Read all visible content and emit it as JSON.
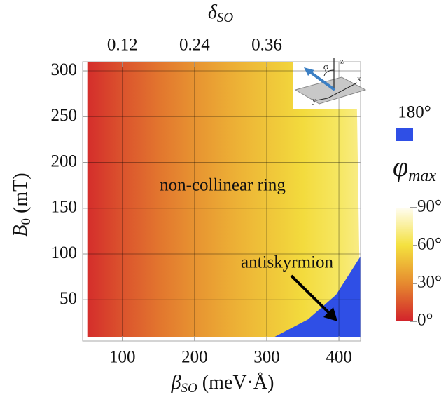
{
  "chart_data": {
    "type": "heatmap",
    "xlabel": {
      "symbol": "β",
      "subscript": "SO",
      "rest": " (meV·Å)"
    },
    "x2label": {
      "symbol": "δ",
      "subscript": "SO"
    },
    "ylabel": {
      "symbol": "B",
      "subscript": "0",
      "rest": " (mT)"
    },
    "xlim": [
      45,
      430
    ],
    "xticks": [
      100,
      200,
      300,
      400
    ],
    "x2lim": [
      0.054,
      0.516
    ],
    "x2ticks": [
      0.12,
      0.24,
      0.36
    ],
    "ylim": [
      5,
      310
    ],
    "yticks": [
      50,
      100,
      150,
      200,
      250,
      300
    ],
    "grid": true,
    "x": [
      50,
      100,
      150,
      200,
      250,
      300,
      350,
      400,
      430
    ],
    "values": [
      3,
      14,
      24,
      33,
      42,
      50,
      58,
      66,
      72
    ],
    "domain": {
      "x": [
        51.5,
        336,
        336,
        425,
        430,
        51.5
      ],
      "y": [
        310,
        310,
        258.6,
        258.6,
        9.4,
        9.4
      ]
    },
    "phi_180_region": {
      "color": "#2f4fe6",
      "x": [
        310.7,
        357,
        396,
        430,
        430
      ],
      "y": [
        9.4,
        28.5,
        55.4,
        97.5,
        9.4
      ]
    },
    "annotations": {
      "ring": "non-collinear ring",
      "antiskyrmion": "antiskyrmion"
    },
    "colorbar": {
      "title": {
        "symbol": "φ",
        "subscript": "max"
      },
      "ticks": [
        {
          "value": 0,
          "label": "0°"
        },
        {
          "value": 30,
          "label": "30°"
        },
        {
          "value": 60,
          "label": "60°"
        },
        {
          "value": 90,
          "label": "90°"
        }
      ],
      "colors": [
        "#d2222b",
        "#e68a2f",
        "#f4e13e",
        "#fffdf2"
      ],
      "overflow_label": "180°"
    },
    "inset": {
      "labels": [
        "z",
        "y",
        "x",
        "φ"
      ]
    }
  }
}
